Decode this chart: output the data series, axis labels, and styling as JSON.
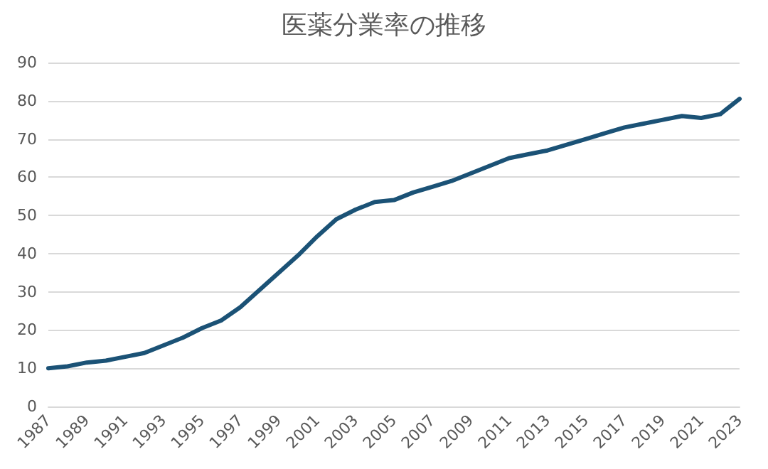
{
  "chart_data": {
    "type": "line",
    "title": "医薬分業率の推移",
    "categories": [
      "1987",
      null,
      "1989",
      null,
      "1991",
      null,
      "1993",
      null,
      "1995",
      null,
      "1997",
      null,
      "1999",
      null,
      "2001",
      null,
      "2003",
      null,
      "2005",
      null,
      "2007",
      null,
      "2009",
      null,
      "2011",
      null,
      "2013",
      null,
      "2015",
      null,
      "2017",
      null,
      "2019",
      null,
      "2021",
      null,
      "2023"
    ],
    "series": [
      {
        "color": "#1b5276",
        "values": [
          10,
          10.5,
          11.5,
          12,
          13,
          14,
          16,
          18,
          20.5,
          22.5,
          26,
          30.5,
          35,
          39.5,
          44.5,
          49,
          51.5,
          53.5,
          54,
          56,
          57.5,
          59,
          61,
          63,
          65,
          66,
          67,
          68.5,
          70,
          71.5,
          73,
          74,
          75,
          76,
          75.5,
          76.5,
          80.5
        ]
      }
    ],
    "ylim": [
      0,
      90
    ],
    "yticks": [
      0,
      10,
      20,
      30,
      40,
      50,
      60,
      70,
      80,
      90
    ],
    "grid": "y",
    "marker": "none",
    "line_style": "solid"
  }
}
